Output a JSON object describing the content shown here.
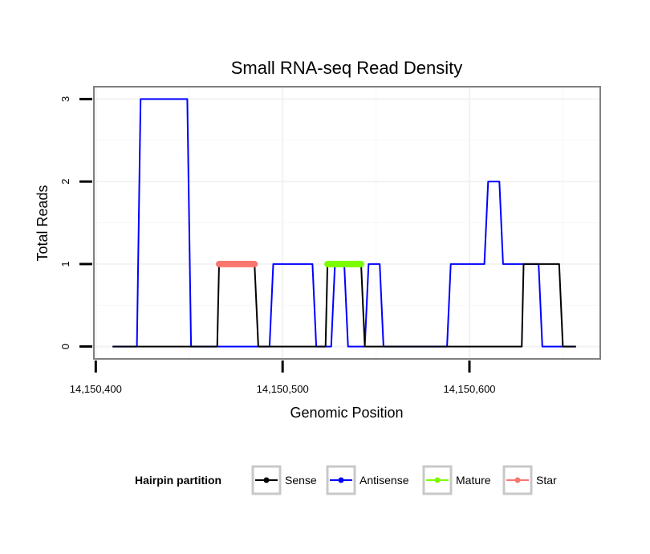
{
  "chart_data": {
    "type": "line",
    "title": "Small RNA-seq Read Density",
    "xlabel": "Genomic Position",
    "ylabel": "Total Reads",
    "xlim": [
      14150399,
      14150670
    ],
    "ylim": [
      -0.15,
      3.15
    ],
    "x_ticks": [
      14150400,
      14150500,
      14150600
    ],
    "x_tick_labels": [
      "14,150,400",
      "14,150,500",
      "14,150,600"
    ],
    "y_ticks": [
      0,
      1,
      2,
      3
    ],
    "y_tick_labels": [
      "0",
      "1",
      "2",
      "3"
    ],
    "grid": true,
    "legend": {
      "title": "Hairpin partition",
      "position": "bottom",
      "entries": [
        "Sense",
        "Antisense",
        "Mature",
        "Star"
      ]
    },
    "series": [
      {
        "name": "Antisense",
        "color": "#0000ff",
        "width": 2,
        "points": [
          [
            14150409,
            0
          ],
          [
            14150422,
            0
          ],
          [
            14150424,
            3
          ],
          [
            14150449,
            3
          ],
          [
            14150451,
            0
          ],
          [
            14150493,
            0
          ],
          [
            14150495,
            1
          ],
          [
            14150516,
            1
          ],
          [
            14150518,
            0
          ],
          [
            14150526,
            0
          ],
          [
            14150528,
            1
          ],
          [
            14150533,
            1
          ],
          [
            14150535,
            0
          ],
          [
            14150544,
            0
          ],
          [
            14150546,
            1
          ],
          [
            14150552,
            1
          ],
          [
            14150554,
            0
          ],
          [
            14150588,
            0
          ],
          [
            14150590,
            1
          ],
          [
            14150608,
            1
          ],
          [
            14150610,
            2
          ],
          [
            14150616,
            2
          ],
          [
            14150618,
            1
          ],
          [
            14150637,
            1
          ],
          [
            14150639,
            0
          ],
          [
            14150657,
            0
          ]
        ]
      },
      {
        "name": "Sense",
        "color": "#000000",
        "width": 2,
        "points": [
          [
            14150409,
            0
          ],
          [
            14150465,
            0
          ],
          [
            14150466,
            1
          ],
          [
            14150485,
            1
          ],
          [
            14150487,
            0
          ],
          [
            14150523,
            0
          ],
          [
            14150524,
            1
          ],
          [
            14150542,
            1
          ],
          [
            14150544,
            0
          ],
          [
            14150628,
            0
          ],
          [
            14150629,
            1
          ],
          [
            14150648,
            1
          ],
          [
            14150650,
            0
          ],
          [
            14150657,
            0
          ]
        ]
      },
      {
        "name": "Star",
        "color": "#f8766d",
        "width": 8,
        "points": [
          [
            14150466,
            1
          ],
          [
            14150485,
            1
          ]
        ]
      },
      {
        "name": "Mature",
        "color": "#7cfc00",
        "width": 8,
        "points": [
          [
            14150524,
            1
          ],
          [
            14150542,
            1
          ]
        ]
      }
    ]
  }
}
